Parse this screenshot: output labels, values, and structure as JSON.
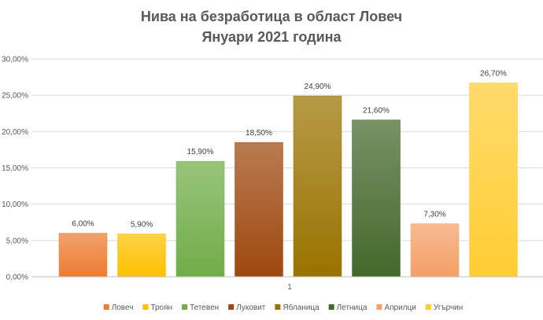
{
  "chart_data": {
    "type": "bar",
    "title_lines": [
      "Нива на безработица в област Ловеч",
      "Януари 2021 година"
    ],
    "categories": [
      "1"
    ],
    "ylim": [
      0,
      30
    ],
    "yticks": [
      0,
      5,
      10,
      15,
      20,
      25,
      30
    ],
    "ytick_labels": [
      "0,00%",
      "5,00%",
      "10,00%",
      "15,00%",
      "20,00%",
      "25,00%",
      "30,00%"
    ],
    "grid": true,
    "legend_position": "bottom",
    "series": [
      {
        "name": "Ловеч",
        "value": 6.0,
        "label": "6,00%",
        "color": "#ED7D31"
      },
      {
        "name": "Троян",
        "value": 5.9,
        "label": "5,90%",
        "color": "#FFC000"
      },
      {
        "name": "Тетевен",
        "value": 15.9,
        "label": "15,90%",
        "color": "#70AD47"
      },
      {
        "name": "Луковит",
        "value": 18.5,
        "label": "18,50%",
        "color": "#9E480E"
      },
      {
        "name": "Ябланица",
        "value": 24.9,
        "label": "24,90%",
        "color": "#997300"
      },
      {
        "name": "Летница",
        "value": 21.6,
        "label": "21,60%",
        "color": "#43682B"
      },
      {
        "name": "Априлци",
        "value": 7.3,
        "label": "7,30%",
        "color": "#F4A066"
      },
      {
        "name": "Угърчин",
        "value": 26.7,
        "label": "26,70%",
        "color": "#FFCD33"
      }
    ]
  }
}
